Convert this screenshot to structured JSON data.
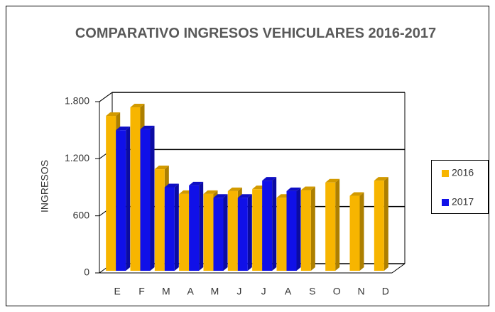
{
  "chart_data": {
    "type": "bar3d",
    "title": "COMPARATIVO INGRESOS VEHICULARES 2016-2017",
    "y_label": "INGRESOS",
    "categories": [
      "E",
      "F",
      "M",
      "A",
      "M",
      "J",
      "J",
      "A",
      "S",
      "O",
      "N",
      "D"
    ],
    "series": [
      {
        "name": "2016",
        "color": "#f7b500",
        "values": [
          1650,
          1740,
          1090,
          830,
          830,
          860,
          880,
          790,
          870,
          950,
          810,
          970
        ]
      },
      {
        "name": "2017",
        "color": "#1010e8",
        "values": [
          1500,
          1510,
          900,
          920,
          790,
          790,
          970,
          860,
          null,
          null,
          null,
          null
        ]
      }
    ],
    "ylim": [
      0,
      1800
    ],
    "yticks": [
      0,
      600,
      {
        "value": 1200,
        "label": "1.200"
      },
      {
        "value": 1800,
        "label": "1.800"
      }
    ],
    "grid": true,
    "legend": "right"
  }
}
